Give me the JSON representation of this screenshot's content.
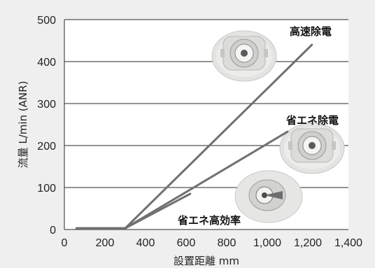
{
  "chart_data": {
    "type": "line",
    "title": "",
    "xlabel": "設置距離 mm",
    "ylabel": "流量 L/min (ANR)",
    "xlim": [
      0,
      1400
    ],
    "ylim": [
      0,
      500
    ],
    "x_ticks": [
      "0",
      "200",
      "400",
      "600",
      "800",
      "1,000",
      "1,200",
      "1,400"
    ],
    "y_ticks": [
      "0",
      "100",
      "200",
      "300",
      "400",
      "500"
    ],
    "grid": "horizontal",
    "colors": {
      "series": "#707070",
      "grid": "#2a2a2a",
      "plot_bg": "#ffffff",
      "frame_bg": "#efefef"
    },
    "series": [
      {
        "name": "高速除電",
        "points": [
          [
            60,
            3
          ],
          [
            300,
            3
          ],
          [
            1220,
            440
          ]
        ]
      },
      {
        "name": "省エネ除電",
        "points": [
          [
            60,
            3
          ],
          [
            300,
            3
          ],
          [
            1100,
            233
          ]
        ]
      },
      {
        "name": "省エネ高効率",
        "points": [
          [
            60,
            3
          ],
          [
            300,
            3
          ],
          [
            620,
            85
          ]
        ]
      }
    ],
    "product_images": [
      "高速除電 nozzle",
      "省エネ除電 nozzle",
      "省エネ高効率 nozzle"
    ]
  }
}
